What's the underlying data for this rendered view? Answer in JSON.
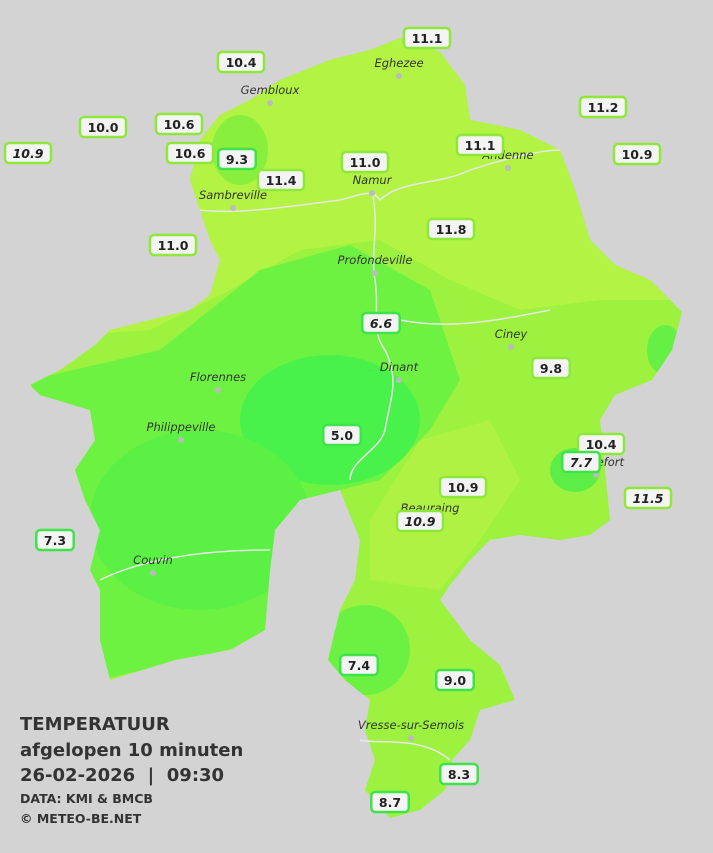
{
  "title": "TEMPERATUUR",
  "subtitle": "afgelopen 10 minuten",
  "timestamp": "26-02-2026  |  09:30",
  "source": "DATA: KMI & BMCB",
  "copyright": "© METEO-BE.NET",
  "cities": [
    "Eghezee",
    "Gembloux",
    "Andenne",
    "Namur",
    "Sambreville",
    "Profondeville",
    "Ciney",
    "Dinant",
    "Florennes",
    "Philippeville",
    "Rochefort",
    "Beauraing",
    "Couvin",
    "Vresse-sur-Semois"
  ],
  "stations": [
    {
      "label": "11.1"
    },
    {
      "label": "10.4"
    },
    {
      "label": "11.2"
    },
    {
      "label": "10.0"
    },
    {
      "label": "10.6"
    },
    {
      "label": "10.9",
      "italic": true
    },
    {
      "label": "10.6"
    },
    {
      "label": "9.3"
    },
    {
      "label": "11.1"
    },
    {
      "label": "11.0"
    },
    {
      "label": "10.9"
    },
    {
      "label": "11.4"
    },
    {
      "label": "11.8"
    },
    {
      "label": "11.0"
    },
    {
      "label": "6.6",
      "italic": true
    },
    {
      "label": "9.8"
    },
    {
      "label": "5.0"
    },
    {
      "label": "10.4"
    },
    {
      "label": "7.7",
      "italic": true
    },
    {
      "label": "10.9"
    },
    {
      "label": "11.5",
      "italic": true
    },
    {
      "label": "10.9",
      "italic": true
    },
    {
      "label": "7.3"
    },
    {
      "label": "7.4"
    },
    {
      "label": "9.0"
    },
    {
      "label": "8.3"
    },
    {
      "label": "8.7"
    }
  ]
}
